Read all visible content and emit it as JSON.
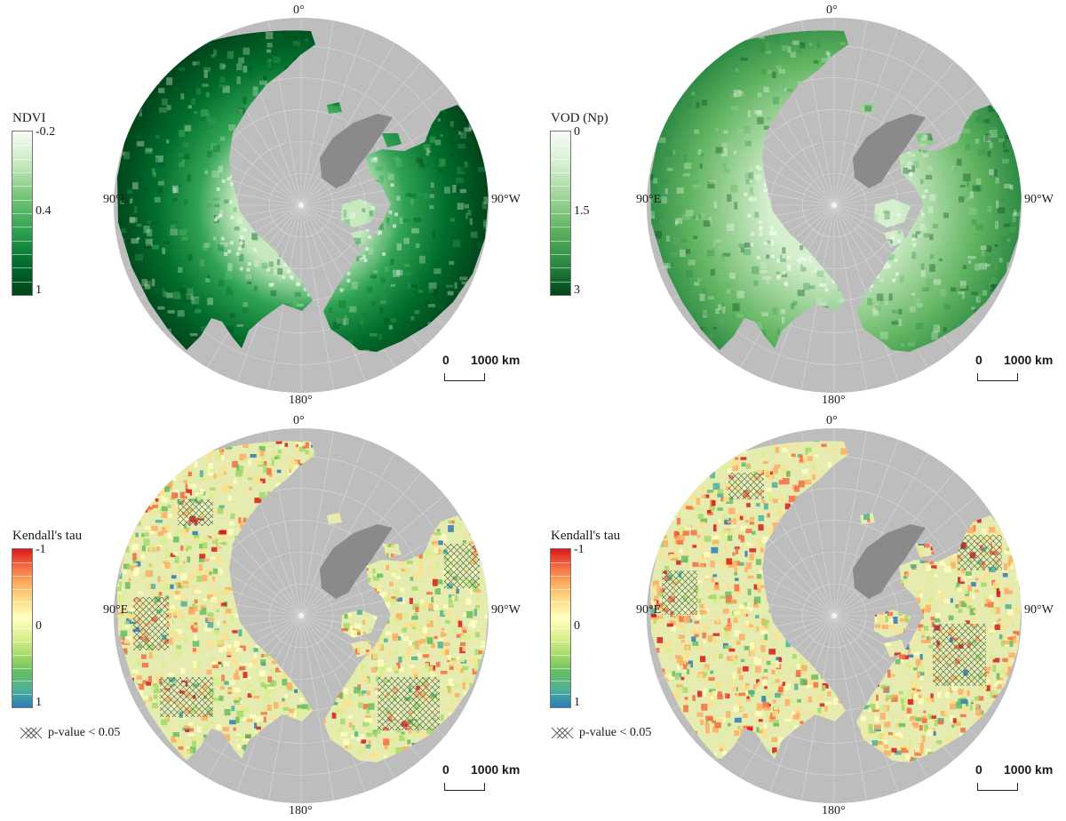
{
  "meridian_labels": {
    "top": "0°",
    "left": "90°E",
    "right": "90°W",
    "bottom": "180°"
  },
  "scalebar": {
    "zero": "0",
    "distance": "1000 km"
  },
  "colors": {
    "ocean": "#bdbdbd",
    "greenland": "#8a8a8a",
    "graticule": "#d9d9d9"
  },
  "panels": [
    {
      "id": "ndvi",
      "variable": "NDVI",
      "legend": {
        "title": "NDVI",
        "ticks": [
          "-0.2",
          "0.4",
          "1"
        ]
      },
      "palette": [
        "#f7fcf5",
        "#c7e9c0",
        "#74c476",
        "#31a354",
        "#006d2c",
        "#00441b"
      ]
    },
    {
      "id": "vod",
      "variable": "VOD",
      "legend": {
        "title": "VOD (Np)",
        "ticks": [
          "0",
          "1.5",
          "3"
        ]
      },
      "palette": [
        "#f7fcf5",
        "#d5efcf",
        "#9fd49a",
        "#5fb35f",
        "#2e8b45",
        "#00441b"
      ]
    },
    {
      "id": "tau-ndvi",
      "variable": "Kendall's tau",
      "legend": {
        "title": "Kendall's tau",
        "ticks": [
          "-1",
          "0",
          "1"
        ],
        "significance": "p-value < 0.05"
      },
      "palette": [
        "#d7191c",
        "#f46d43",
        "#fdae61",
        "#fee08b",
        "#ffffbf",
        "#d9ef8b",
        "#a6d96a",
        "#66bd63",
        "#4daf9a",
        "#2c7bb6"
      ]
    },
    {
      "id": "tau-vod",
      "variable": "Kendall's tau",
      "legend": {
        "title": "Kendall's tau",
        "ticks": [
          "-1",
          "0",
          "1"
        ],
        "significance": "p-value < 0.05"
      },
      "palette": [
        "#d7191c",
        "#f46d43",
        "#fdae61",
        "#fee08b",
        "#ffffbf",
        "#d9ef8b",
        "#a6d96a",
        "#66bd63",
        "#4daf9a",
        "#2c7bb6"
      ]
    }
  ]
}
